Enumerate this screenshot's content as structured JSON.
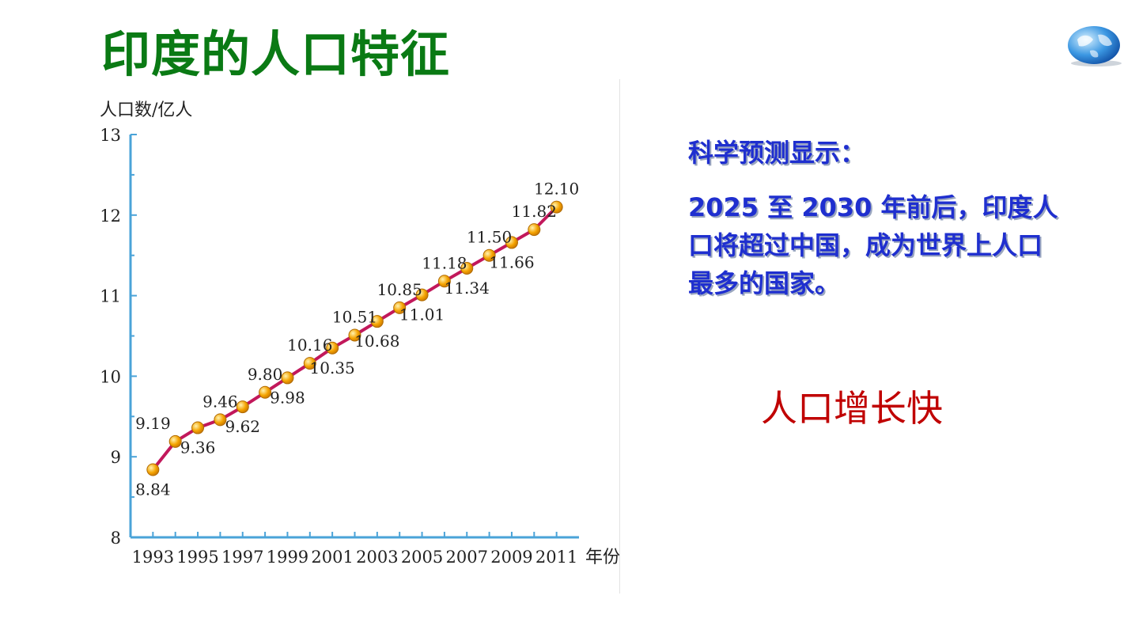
{
  "slide": {
    "title": "印度的人口特征",
    "globe_icon": "globe-icon"
  },
  "text_panel": {
    "heading": "科学预测显示：",
    "body": "2025 至 2030 年前后，印度人口将超过中国，成为世界上人口最多的国家。"
  },
  "conclusion": "人口增长快",
  "chart_data": {
    "type": "line",
    "title": "",
    "ylabel": "人口数/亿人",
    "xlabel": "年份",
    "ylim": [
      8,
      13
    ],
    "y_ticks": [
      8,
      9,
      10,
      11,
      12,
      13
    ],
    "x_tick_labels": [
      "1993",
      "1995",
      "1997",
      "1999",
      "2001",
      "2003",
      "2005",
      "2007",
      "2009",
      "2011"
    ],
    "x": [
      1993,
      1994,
      1995,
      1996,
      1997,
      1998,
      1999,
      2000,
      2001,
      2002,
      2003,
      2004,
      2005,
      2006,
      2007,
      2008,
      2009,
      2010,
      2011
    ],
    "values": [
      8.84,
      9.19,
      9.36,
      9.46,
      9.62,
      9.8,
      9.98,
      10.16,
      10.35,
      10.51,
      10.68,
      10.85,
      11.01,
      11.18,
      11.34,
      11.5,
      11.66,
      11.82,
      12.1
    ],
    "data_labels": [
      "8.84",
      "9.19",
      "9.36",
      "9.46",
      "9.62",
      "9.80",
      "9.98",
      "10.16",
      "10.35",
      "10.51",
      "10.68",
      "10.85",
      "11.01",
      "11.18",
      "11.34",
      "11.50",
      "11.66",
      "11.82",
      "12.10"
    ],
    "line_color": "#c2185b",
    "marker_color": "#f5a300",
    "axis_color": "#4aa3d8",
    "grid": false
  }
}
